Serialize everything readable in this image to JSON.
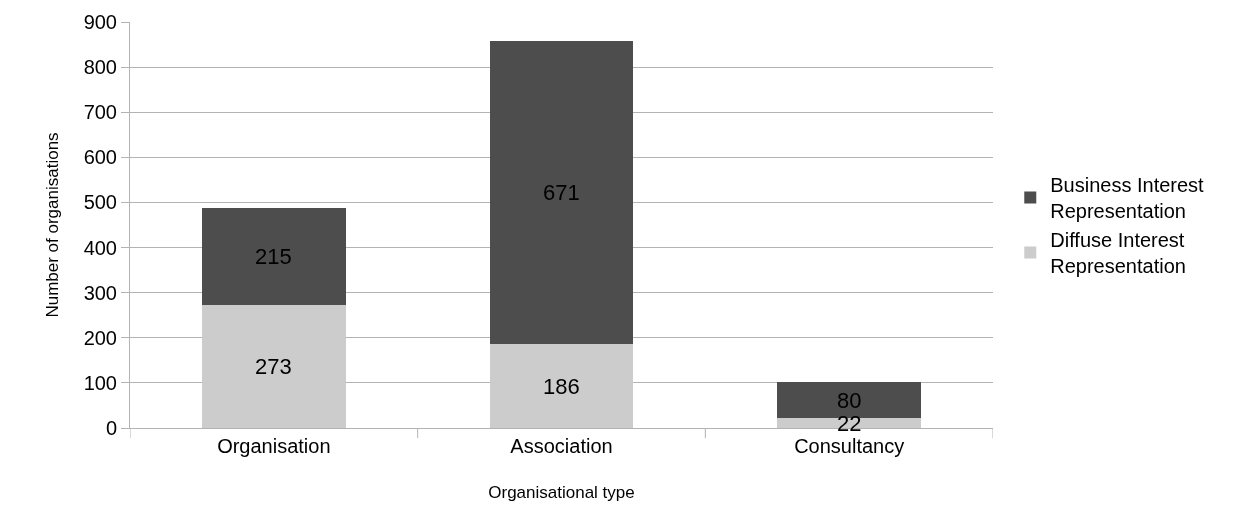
{
  "chart_data": {
    "type": "bar",
    "stacked": true,
    "xlabel": "Organisational type",
    "ylabel": "Number of organisations",
    "categories": [
      "Organisation",
      "Association",
      "Consultancy"
    ],
    "series": [
      {
        "name": "Diffuse Interest Representation",
        "color": "#cccccc",
        "values": [
          273,
          186,
          22
        ]
      },
      {
        "name": "Business Interest Representation",
        "color": "#4d4d4d",
        "values": [
          215,
          671,
          80
        ]
      }
    ],
    "ylim": [
      0,
      900
    ],
    "yticks": [
      0,
      100,
      200,
      300,
      400,
      500,
      600,
      700,
      800,
      900
    ],
    "grid": "y",
    "legend": "right",
    "data_labels": true
  }
}
